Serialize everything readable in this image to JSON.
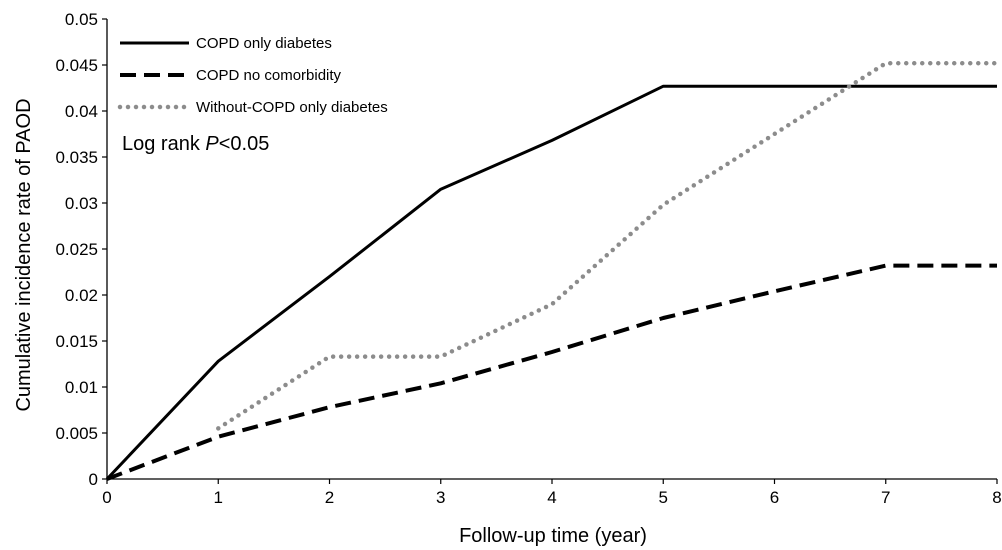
{
  "chart_data": {
    "type": "line",
    "xlabel": "Follow-up time (year)",
    "ylabel": "Cumulative incidence rate of PAOD",
    "xlim": [
      0,
      8
    ],
    "ylim": [
      0,
      0.05
    ],
    "xticks": [
      "0",
      "1",
      "2",
      "3",
      "4",
      "5",
      "6",
      "7",
      "8"
    ],
    "yticks": [
      "0",
      "0.005",
      "0.01",
      "0.015",
      "0.02",
      "0.025",
      "0.03",
      "0.035",
      "0.04",
      "0.045",
      "0.05"
    ],
    "grid": false,
    "legend_position": "top-left",
    "annotation": {
      "prefix": "Log rank ",
      "italic": "P",
      "suffix": "<0.05"
    },
    "series": [
      {
        "name": "COPD only diabetes",
        "style": "solid",
        "color": "#000000",
        "x": [
          0,
          1,
          2,
          3,
          4,
          5,
          8
        ],
        "y": [
          0,
          0.0128,
          0.022,
          0.0315,
          0.0368,
          0.0427,
          0.0427
        ]
      },
      {
        "name": "COPD no comorbidity",
        "style": "dashed",
        "color": "#000000",
        "x": [
          0,
          1,
          2,
          3,
          4,
          5,
          6,
          7,
          8
        ],
        "y": [
          0,
          0.0046,
          0.0078,
          0.0104,
          0.0138,
          0.0175,
          0.0204,
          0.0232,
          0.0232
        ]
      },
      {
        "name": "Without-COPD only diabetes",
        "style": "dotted",
        "color": "#8c8c8c",
        "x": [
          1,
          2,
          3,
          4,
          5,
          6,
          7,
          8
        ],
        "y": [
          0.0055,
          0.0133,
          0.0133,
          0.019,
          0.0298,
          0.0375,
          0.0452,
          0.0452
        ]
      }
    ]
  }
}
